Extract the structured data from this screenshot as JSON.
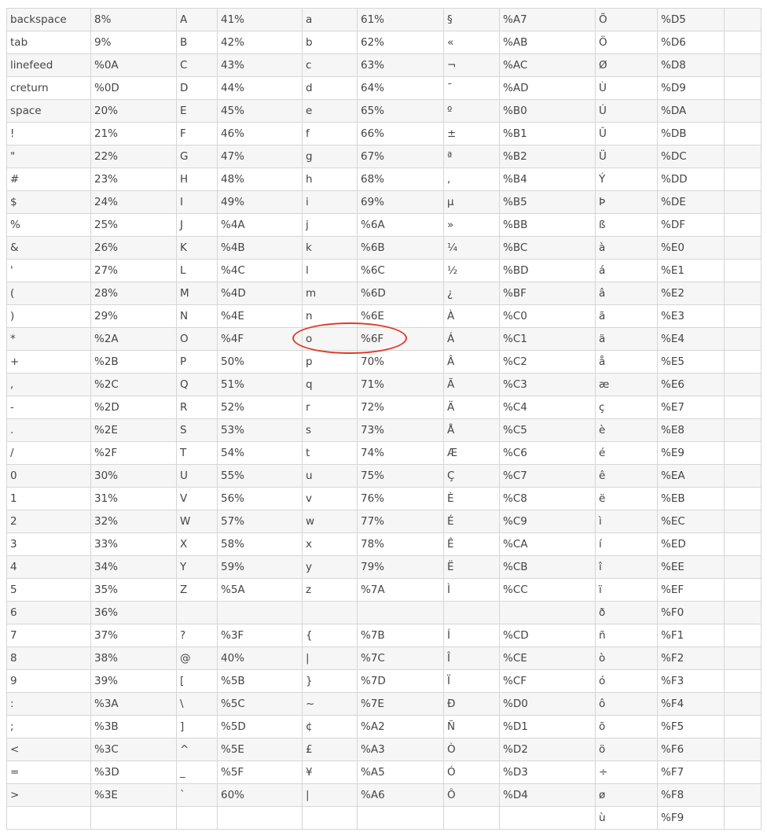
{
  "table": {
    "rows": [
      [
        "backspace",
        "8%",
        "A",
        "41%",
        "a",
        "61%",
        "§",
        "%A7",
        "Õ",
        "%D5",
        ""
      ],
      [
        "tab",
        "9%",
        "B",
        "42%",
        "b",
        "62%",
        "«",
        "%AB",
        "Ö",
        "%D6",
        ""
      ],
      [
        "linefeed",
        "%0A",
        "C",
        "43%",
        "c",
        "63%",
        "¬",
        "%AC",
        "Ø",
        "%D8",
        ""
      ],
      [
        "creturn",
        "%0D",
        "D",
        "44%",
        "d",
        "64%",
        "¯",
        "%AD",
        "Ù",
        "%D9",
        ""
      ],
      [
        "space",
        "20%",
        "E",
        "45%",
        "e",
        "65%",
        "º",
        "%B0",
        "Ú",
        "%DA",
        ""
      ],
      [
        "!",
        "21%",
        "F",
        "46%",
        "f",
        "66%",
        "±",
        "%B1",
        "Û",
        "%DB",
        ""
      ],
      [
        "\"",
        "22%",
        "G",
        "47%",
        "g",
        "67%",
        "ª",
        "%B2",
        "Ü",
        "%DC",
        ""
      ],
      [
        "#",
        "23%",
        "H",
        "48%",
        "h",
        "68%",
        ",",
        "%B4",
        "Ý",
        "%DD",
        ""
      ],
      [
        "$",
        "24%",
        "I",
        "49%",
        "i",
        "69%",
        "µ",
        "%B5",
        "Þ",
        "%DE",
        ""
      ],
      [
        "%",
        "25%",
        "J",
        "%4A",
        "j",
        "%6A",
        "»",
        "%BB",
        "ß",
        "%DF",
        ""
      ],
      [
        "&",
        "26%",
        "K",
        "%4B",
        "k",
        "%6B",
        "¼",
        "%BC",
        "à",
        "%E0",
        ""
      ],
      [
        "'",
        "27%",
        "L",
        "%4C",
        "l",
        "%6C",
        "½",
        "%BD",
        "á",
        "%E1",
        ""
      ],
      [
        "(",
        "28%",
        "M",
        "%4D",
        "m",
        "%6D",
        "¿",
        "%BF",
        "â",
        "%E2",
        ""
      ],
      [
        ")",
        "29%",
        "N",
        "%4E",
        "n",
        "%6E",
        "À",
        "%C0",
        "ã",
        "%E3",
        ""
      ],
      [
        "*",
        "%2A",
        "O",
        "%4F",
        "o",
        "%6F",
        "Á",
        "%C1",
        "ä",
        "%E4",
        ""
      ],
      [
        "+",
        "%2B",
        "P",
        "50%",
        "p",
        "70%",
        "Â",
        "%C2",
        "å",
        "%E5",
        ""
      ],
      [
        ",",
        "%2C",
        "Q",
        "51%",
        "q",
        "71%",
        "Ã",
        "%C3",
        "æ",
        "%E6",
        ""
      ],
      [
        "-",
        "%2D",
        "R",
        "52%",
        "r",
        "72%",
        "Ä",
        "%C4",
        "ç",
        "%E7",
        ""
      ],
      [
        ".",
        "%2E",
        "S",
        "53%",
        "s",
        "73%",
        "Å",
        "%C5",
        "è",
        "%E8",
        ""
      ],
      [
        "/",
        "%2F",
        "T",
        "54%",
        "t",
        "74%",
        "Æ",
        "%C6",
        "é",
        "%E9",
        ""
      ],
      [
        "0",
        "30%",
        "U",
        "55%",
        "u",
        "75%",
        "Ç",
        "%C7",
        "ê",
        "%EA",
        ""
      ],
      [
        "1",
        "31%",
        "V",
        "56%",
        "v",
        "76%",
        "È",
        "%C8",
        "ë",
        "%EB",
        ""
      ],
      [
        "2",
        "32%",
        "W",
        "57%",
        "w",
        "77%",
        "É",
        "%C9",
        "ì",
        "%EC",
        ""
      ],
      [
        "3",
        "33%",
        "X",
        "58%",
        "x",
        "78%",
        "Ê",
        "%CA",
        "í",
        "%ED",
        ""
      ],
      [
        "4",
        "34%",
        "Y",
        "59%",
        "y",
        "79%",
        "Ë",
        "%CB",
        "î",
        "%EE",
        ""
      ],
      [
        "5",
        "35%",
        "Z",
        "%5A",
        "z",
        "%7A",
        "Ì",
        "%CC",
        "ï",
        "%EF",
        ""
      ],
      [
        "6",
        "36%",
        "",
        "",
        "",
        "",
        "",
        "",
        "ð",
        "%F0",
        ""
      ],
      [
        "7",
        "37%",
        "?",
        "%3F",
        "{",
        "%7B",
        "Í",
        "%CD",
        "ñ",
        "%F1",
        ""
      ],
      [
        "8",
        "38%",
        "@",
        "40%",
        "|",
        "%7C",
        "Î",
        "%CE",
        "ò",
        "%F2",
        ""
      ],
      [
        "9",
        "39%",
        "[",
        "%5B",
        "}",
        "%7D",
        "Ï",
        "%CF",
        "ó",
        "%F3",
        ""
      ],
      [
        ":",
        "%3A",
        "\\",
        "%5C",
        "~",
        "%7E",
        "Ð",
        "%D0",
        "ô",
        "%F4",
        ""
      ],
      [
        ";",
        "%3B",
        "]",
        "%5D",
        "¢",
        "%A2",
        "Ñ",
        "%D1",
        "õ",
        "%F5",
        ""
      ],
      [
        "<",
        "%3C",
        "^",
        "%5E",
        "£",
        "%A3",
        "Ò",
        "%D2",
        "ö",
        "%F6",
        ""
      ],
      [
        "=",
        "%3D",
        "_",
        "%5F",
        "¥",
        "%A5",
        "Ó",
        "%D3",
        "÷",
        "%F7",
        ""
      ],
      [
        ">",
        "%3E",
        "`",
        "60%",
        "|",
        "%A6",
        "Ô",
        "%D4",
        "ø",
        "%F8",
        ""
      ],
      [
        "",
        "",
        "",
        "",
        "",
        "",
        "",
        "",
        "ù",
        "%F9",
        ""
      ]
    ]
  },
  "highlight": {
    "color": "#e03a22",
    "target_row": 14,
    "target_columns": [
      4,
      5
    ]
  }
}
